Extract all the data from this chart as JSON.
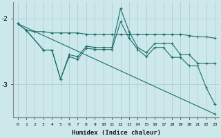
{
  "xlabel": "Humidex (Indice chaleur)",
  "bg_color": "#cce8ea",
  "grid_color": "#b0d0d4",
  "line_color": "#1a6e6a",
  "xlim": [
    -0.5,
    23.5
  ],
  "ylim": [
    -3.5,
    -1.75
  ],
  "yticks": [
    -3,
    -2
  ],
  "xticks": [
    0,
    1,
    2,
    3,
    4,
    5,
    6,
    7,
    8,
    9,
    10,
    11,
    12,
    13,
    14,
    15,
    16,
    17,
    18,
    19,
    20,
    21,
    22,
    23
  ],
  "series": [
    {
      "x": [
        0,
        1,
        2,
        3,
        4,
        5,
        6,
        7,
        8,
        9,
        10,
        11,
        12,
        13,
        14,
        15,
        16,
        17,
        18,
        19,
        20,
        21,
        22,
        23
      ],
      "y": [
        -2.08,
        -2.18,
        -2.2,
        -2.2,
        -2.22,
        -2.22,
        -2.22,
        -2.22,
        -2.24,
        -2.24,
        -2.24,
        -2.24,
        -2.24,
        -2.24,
        -2.24,
        -2.24,
        -2.24,
        -2.24,
        -2.24,
        -2.24,
        -2.26,
        -2.28,
        -2.28,
        -2.3
      ]
    },
    {
      "x": [
        1,
        3,
        4,
        5,
        6,
        7,
        8,
        9,
        10,
        11,
        12,
        13,
        14,
        15,
        16,
        17,
        18,
        19,
        20,
        21,
        22,
        23
      ],
      "y": [
        -2.18,
        -2.48,
        -2.48,
        -2.92,
        -2.55,
        -2.58,
        -2.42,
        -2.44,
        -2.44,
        -2.44,
        -1.85,
        -2.2,
        -2.44,
        -2.52,
        -2.38,
        -2.38,
        -2.38,
        -2.55,
        -2.55,
        -2.68,
        -2.68,
        -2.68
      ]
    },
    {
      "x": [
        0,
        1,
        3,
        4,
        5,
        6,
        7,
        8,
        9,
        10,
        11,
        12,
        13,
        14,
        15,
        16,
        17,
        18,
        19,
        20,
        21,
        22,
        23
      ],
      "y": [
        -2.08,
        -2.18,
        -2.48,
        -2.48,
        -2.92,
        -2.58,
        -2.62,
        -2.45,
        -2.47,
        -2.47,
        -2.47,
        -2.05,
        -2.3,
        -2.47,
        -2.58,
        -2.44,
        -2.44,
        -2.59,
        -2.59,
        -2.72,
        -2.72,
        -3.05,
        -3.3
      ]
    },
    {
      "x": [
        0,
        23
      ],
      "y": [
        -2.08,
        -3.45
      ]
    }
  ]
}
